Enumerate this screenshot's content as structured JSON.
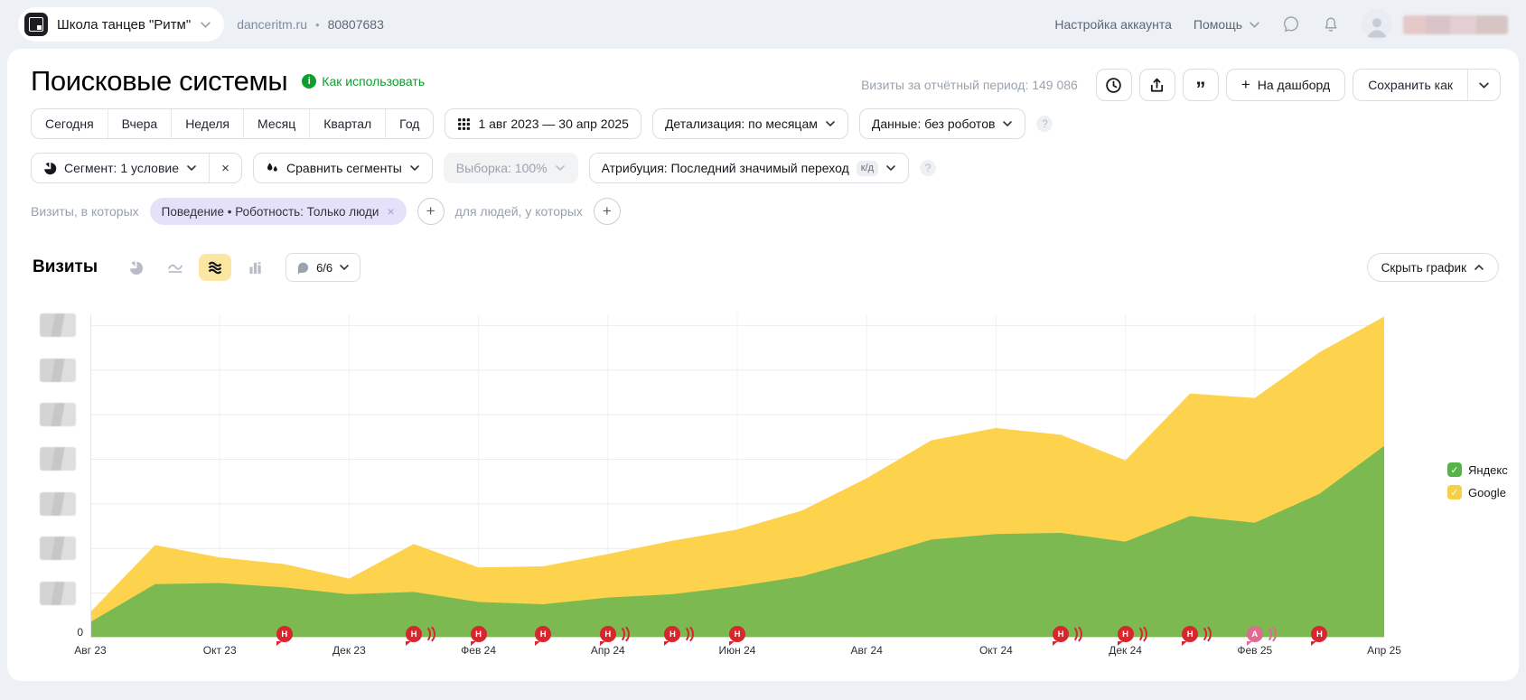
{
  "topbar": {
    "counter_name": "Школа танцев \"Ритм\"",
    "domain": "danceritm.ru",
    "bullet": "•",
    "counter_id": "80807683",
    "account_settings": "Настройка аккаунта",
    "help": "Помощь"
  },
  "header": {
    "title": "Поисковые системы",
    "how_to_use": "Как использовать",
    "visits_summary": "Визиты за отчётный период: 149 086",
    "to_dashboard_plus": "+",
    "to_dashboard": "На дашборд",
    "save_as": "Сохранить как"
  },
  "period_bar": {
    "tabs": [
      "Сегодня",
      "Вчера",
      "Неделя",
      "Месяц",
      "Квартал",
      "Год"
    ],
    "date_range": "1 авг 2023 — 30 апр 2025",
    "detalization": "Детализация: по месяцам",
    "data_mode": "Данные: без роботов",
    "help_glyph": "?"
  },
  "segment_bar": {
    "segment": "Сегмент: 1 условие",
    "segment_close": "×",
    "compare": "Сравнить сегменты",
    "sampling": "Выборка: 100%",
    "attribution": "Атрибуция: Последний значимый переход",
    "attribution_badge": "к/д",
    "help_glyph": "?"
  },
  "filter_bar": {
    "visits_prefix": "Визиты, в которых",
    "chip_label": "Поведение • Роботность: Только люди",
    "chip_close": "×",
    "add_glyph": "+",
    "people_prefix": "для людей, у которых"
  },
  "chart_header": {
    "metric_title": "Визиты",
    "annotations_badge": "6/6",
    "hide_chart": "Скрыть график"
  },
  "legend": [
    {
      "label": "Яндекс",
      "checkbox_color": "#55b347",
      "check_glyph": "✓"
    },
    {
      "label": "Google",
      "checkbox_color": "#f6cf47",
      "check_glyph": "✓"
    }
  ],
  "chart_data": {
    "type": "area",
    "stacked": true,
    "title": "Визиты",
    "x_unit": "month",
    "x": [
      "Авг 2023",
      "Сен 2023",
      "Окт 2023",
      "Ноя 2023",
      "Дек 2023",
      "Янв 2024",
      "Фев 2024",
      "Мар 2024",
      "Апр 2024",
      "Май 2024",
      "Июн 2024",
      "Июл 2024",
      "Авг 2024",
      "Сен 2024",
      "Окт 2024",
      "Ноя 2024",
      "Дек 2024",
      "Янв 2025",
      "Фев 2025",
      "Мар 2025",
      "Апр 2025"
    ],
    "x_tick_labels": [
      "Авг 23",
      "Окт 23",
      "Дек 23",
      "Фев 24",
      "Апр 24",
      "Июн 24",
      "Авг 24",
      "Окт 24",
      "Дек 24",
      "Фев 25",
      "Апр 25"
    ],
    "series": [
      {
        "name": "Яндекс",
        "color": "#7cb950",
        "values": [
          700,
          2400,
          2450,
          2250,
          1950,
          2050,
          1600,
          1500,
          1800,
          1950,
          2300,
          2750,
          3550,
          4400,
          4650,
          4700,
          4300,
          5450,
          5150,
          6450,
          8600
        ]
      },
      {
        "name": "Google",
        "color": "#fdd24c",
        "values": [
          450,
          1750,
          1150,
          1050,
          700,
          2150,
          1550,
          1700,
          1950,
          2400,
          2550,
          2950,
          3600,
          4450,
          4750,
          4400,
          3650,
          5500,
          5600,
          6350,
          5800
        ]
      }
    ],
    "ylim": [
      0,
      14500
    ],
    "ylabel": "",
    "xlabel": "",
    "grid": true,
    "legend_position": "right",
    "y_gridlines": [
      2000,
      4000,
      6000,
      8000,
      10000,
      12000,
      14000
    ],
    "y_tick_labels_redacted": true,
    "y_zero_label": "0",
    "annotations": [
      {
        "month": "Ноя 2023",
        "month_index": 3,
        "letter": "Н",
        "multi": false,
        "color": "#d6262e"
      },
      {
        "month": "Янв 2024",
        "month_index": 5,
        "letter": "Н",
        "multi": true,
        "color": "#d6262e"
      },
      {
        "month": "Фев 2024",
        "month_index": 6,
        "letter": "Н",
        "multi": false,
        "color": "#d6262e"
      },
      {
        "month": "Мар 2024",
        "month_index": 7,
        "letter": "Н",
        "multi": false,
        "color": "#d6262e"
      },
      {
        "month": "Апр 2024",
        "month_index": 8,
        "letter": "Н",
        "multi": true,
        "color": "#d6262e"
      },
      {
        "month": "Май 2024",
        "month_index": 9,
        "letter": "Н",
        "multi": true,
        "color": "#d6262e"
      },
      {
        "month": "Июн 2024",
        "month_index": 10,
        "letter": "Н",
        "multi": false,
        "color": "#d6262e"
      },
      {
        "month": "Ноя 2024",
        "month_index": 15,
        "letter": "Н",
        "multi": true,
        "color": "#d6262e"
      },
      {
        "month": "Дек 2024",
        "month_index": 16,
        "letter": "Н",
        "multi": true,
        "color": "#d6262e"
      },
      {
        "month": "Янв 2025",
        "month_index": 17,
        "letter": "Н",
        "multi": true,
        "color": "#d6262e"
      },
      {
        "month": "Фев 2025",
        "month_index": 18,
        "letter": "А",
        "multi": true,
        "color": "#df6b93"
      },
      {
        "month": "Мар 2025",
        "month_index": 19,
        "letter": "Н",
        "multi": false,
        "color": "#d6262e"
      }
    ]
  }
}
